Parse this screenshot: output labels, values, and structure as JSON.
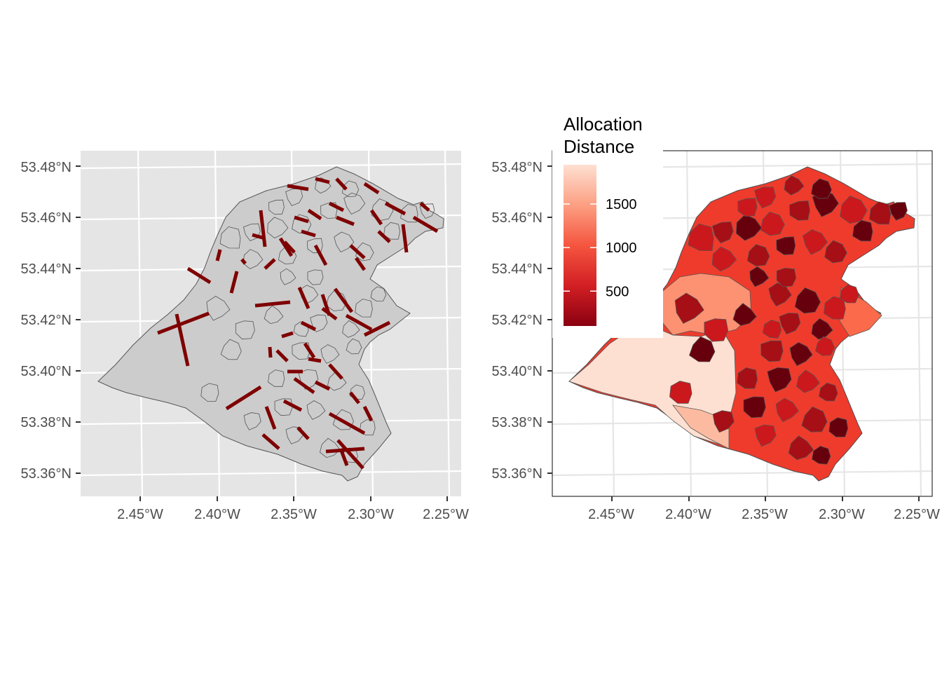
{
  "figure": {
    "left_panel": {
      "background": "#e5e5e5",
      "region_fill": "#cccccc",
      "line_color": "#7f0000",
      "x_ticks": [
        "2.45°W",
        "2.40°W",
        "2.35°W",
        "2.30°W",
        "2.25°W"
      ],
      "y_ticks": [
        "53.48°N",
        "53.46°N",
        "53.44°N",
        "53.42°N",
        "53.40°N",
        "53.38°N",
        "53.36°N"
      ]
    },
    "right_panel": {
      "x_ticks": [
        "2.45°W",
        "2.40°W",
        "2.35°W",
        "2.30°W",
        "2.25°W"
      ],
      "y_ticks": [
        "53.48°N",
        "53.46°N",
        "53.44°N",
        "53.42°N",
        "53.40°N",
        "53.38°N",
        "53.36°N"
      ],
      "legend": {
        "title_line1": "Allocation",
        "title_line2": "Distance",
        "labels": [
          "1500",
          "1000",
          "500"
        ],
        "values": [
          1500,
          1000,
          500
        ],
        "range": [
          100,
          1950
        ],
        "colors": [
          "#fee0d2",
          "#fcbba1",
          "#fc9272",
          "#fb6a4a",
          "#ef3b2c",
          "#cb181d",
          "#a50f15",
          "#67000d"
        ]
      }
    }
  },
  "chart_data": {
    "type": "map",
    "title": "",
    "panels": [
      {
        "name": "allocation-lines",
        "xlabel": "",
        "ylabel": "",
        "xlim": [
          -2.487,
          -2.24
        ],
        "ylim": [
          53.351,
          53.485
        ],
        "segment_color": "#7f0000"
      },
      {
        "name": "allocation-distance-choropleth",
        "xlabel": "",
        "ylabel": "",
        "xlim": [
          -2.487,
          -2.24
        ],
        "ylim": [
          53.351,
          53.485
        ],
        "fill_variable": "Allocation Distance",
        "fill_range": [
          100,
          1950
        ],
        "legend_breaks": [
          500,
          1000,
          1500
        ]
      }
    ]
  }
}
